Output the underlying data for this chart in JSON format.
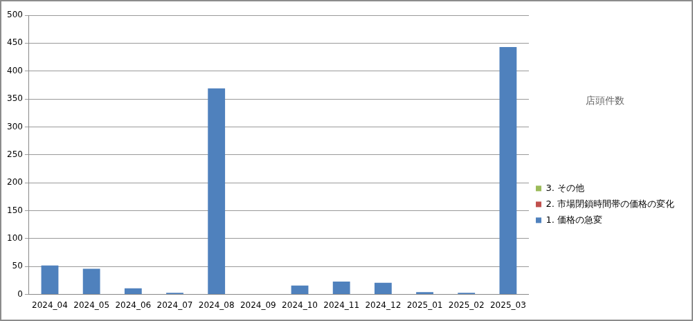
{
  "chart_data": {
    "type": "bar",
    "stacked": true,
    "legend_title": "店頭件数",
    "legend": "right",
    "categories": [
      "2024_04",
      "2024_05",
      "2024_06",
      "2024_07",
      "2024_08",
      "2024_09",
      "2024_10",
      "2024_11",
      "2024_12",
      "2025_01",
      "2025_02",
      "2025_03"
    ],
    "series": [
      {
        "name": "1. 価格の急変",
        "color": "#4f81bd",
        "values": [
          52,
          46,
          11,
          3,
          369,
          0,
          16,
          23,
          21,
          4,
          3,
          443
        ]
      },
      {
        "name": "2. 市場閉鎖時間帯の価格の変化",
        "color": "#c0504d",
        "values": [
          0,
          0,
          0,
          0,
          0,
          0,
          0,
          0,
          0,
          0,
          0,
          0
        ]
      },
      {
        "name": "3. その他",
        "color": "#9bbb59",
        "values": [
          0,
          0,
          0,
          0,
          0,
          0,
          0,
          0,
          0,
          0,
          0,
          0
        ]
      }
    ],
    "ylim": [
      0,
      500
    ],
    "yticks": [
      0,
      50,
      100,
      150,
      200,
      250,
      300,
      350,
      400,
      450,
      500
    ],
    "grid": "y"
  }
}
